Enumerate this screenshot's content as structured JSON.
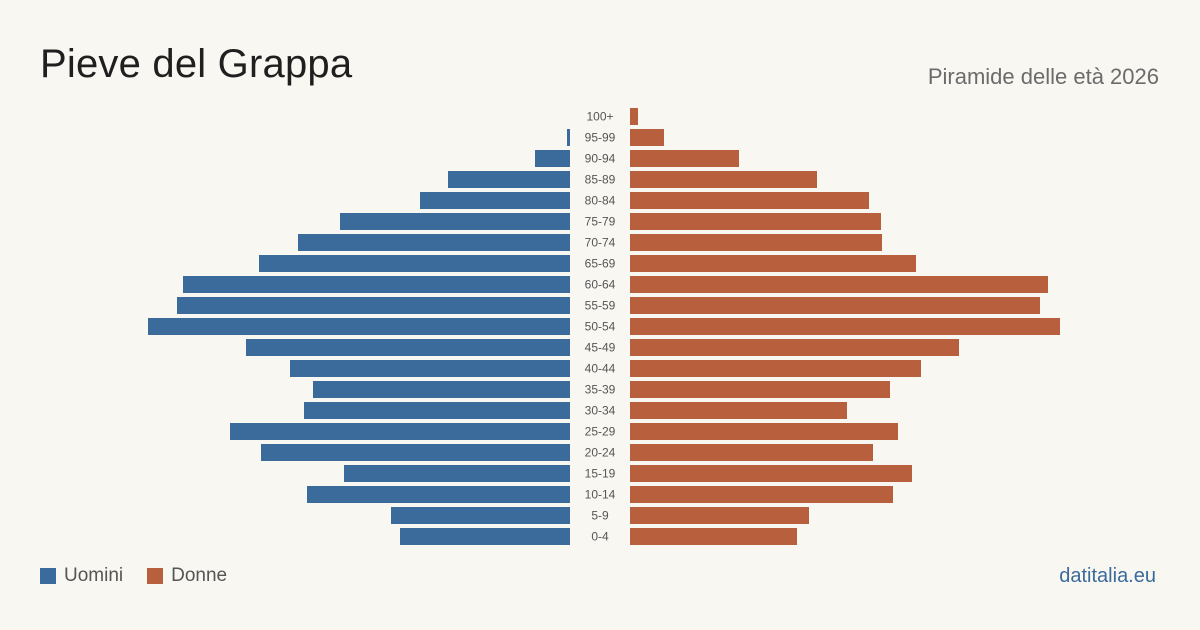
{
  "header": {
    "title": "Pieve del Grappa",
    "subtitle": "Piramide delle età 2026"
  },
  "legend": {
    "men_label": "Uomini",
    "women_label": "Donne"
  },
  "footer": {
    "brand": "datitalia.eu"
  },
  "colors": {
    "men": "#3b6b9a",
    "women": "#b85f3e",
    "background": "#f9f7f2"
  },
  "chart_data": {
    "type": "bar",
    "orientation": "horizontal-pyramid",
    "categories": [
      "100+",
      "95-99",
      "90-94",
      "85-89",
      "80-84",
      "75-79",
      "70-74",
      "65-69",
      "60-64",
      "55-59",
      "50-54",
      "45-49",
      "40-44",
      "35-39",
      "30-34",
      "25-29",
      "20-24",
      "15-19",
      "10-14",
      "5-9",
      "0-4"
    ],
    "series": [
      {
        "name": "Uomini",
        "values": [
          0,
          3,
          35,
          122,
          150,
          230,
          272,
          311,
          387,
          393,
          422,
          324,
          280,
          257,
          266,
          340,
          309,
          226,
          263,
          179,
          170
        ]
      },
      {
        "name": "Donne",
        "values": [
          8,
          34,
          109,
          187,
          239,
          251,
          252,
          286,
          418,
          410,
          430,
          329,
          291,
          260,
          217,
          268,
          243,
          282,
          263,
          179,
          167
        ]
      }
    ],
    "xmax": 430,
    "legend": "bottom-left",
    "grid": false
  }
}
